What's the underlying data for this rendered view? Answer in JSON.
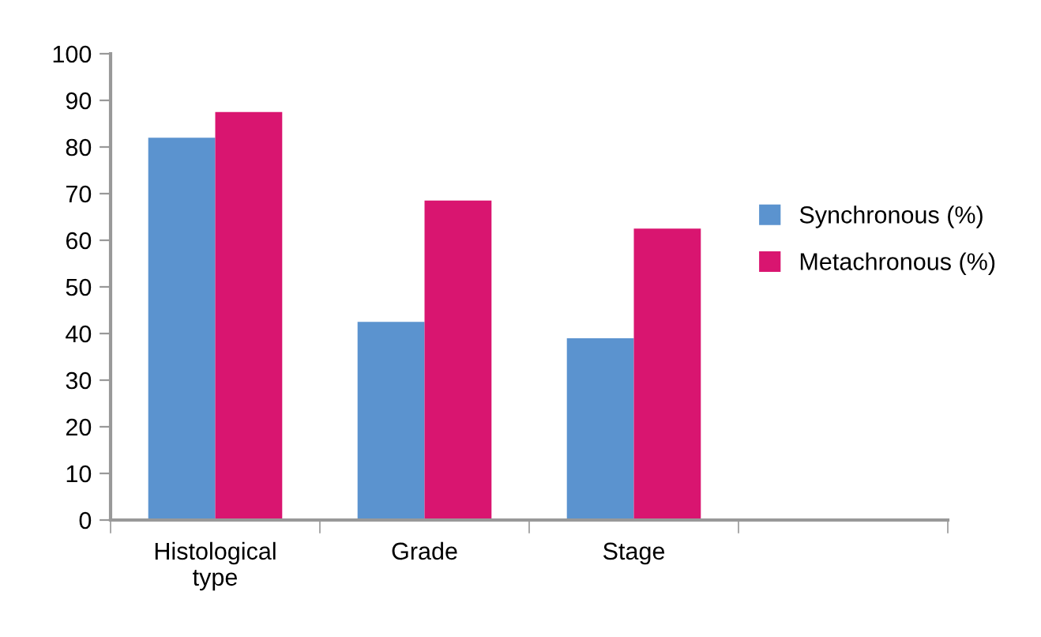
{
  "chart_data": {
    "type": "bar",
    "categories": [
      "Histological\ntype",
      "Grade",
      "Stage",
      null
    ],
    "series": [
      {
        "name": "Synchronous (%)",
        "color": "#5b93cf",
        "values": [
          82,
          42.5,
          39,
          null
        ]
      },
      {
        "name": "Metachronous (%)",
        "color": "#d91570",
        "values": [
          87.5,
          68.5,
          62.5,
          null
        ]
      }
    ],
    "ylim": [
      0,
      100
    ],
    "yticks": [
      0,
      10,
      20,
      30,
      40,
      50,
      60,
      70,
      80,
      90,
      100
    ],
    "grid": false,
    "legend": "right"
  }
}
